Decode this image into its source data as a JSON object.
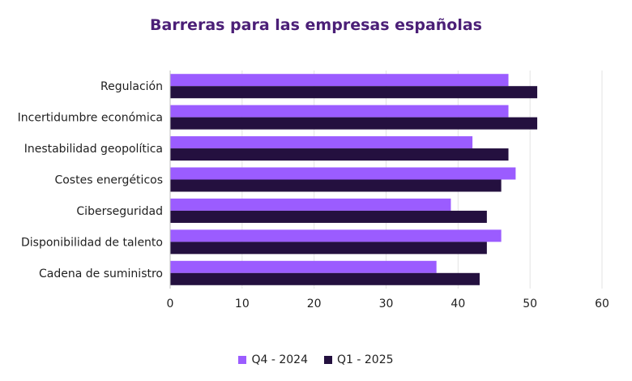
{
  "chart_data": {
    "type": "bar",
    "orientation": "horizontal",
    "title": "Barreras para las empresas españolas",
    "xlim": [
      0,
      60
    ],
    "x_ticks": [
      0,
      10,
      20,
      30,
      40,
      50,
      60
    ],
    "grid": "vertical",
    "legend_position": "bottom-center",
    "categories": [
      "Regulación",
      "Incertidumbre económica",
      "Inestabilidad geopolítica",
      "Costes energéticos",
      "Ciberseguridad",
      "Disponibilidad de talento",
      "Cadena de suministro"
    ],
    "series": [
      {
        "name": "Q4 - 2024",
        "color": "#9b5cff",
        "values": [
          47,
          47,
          42,
          48,
          39,
          46,
          37
        ]
      },
      {
        "name": "Q1 - 2025",
        "color": "#24103f",
        "values": [
          51,
          51,
          47,
          46,
          44,
          44,
          43
        ]
      }
    ]
  }
}
